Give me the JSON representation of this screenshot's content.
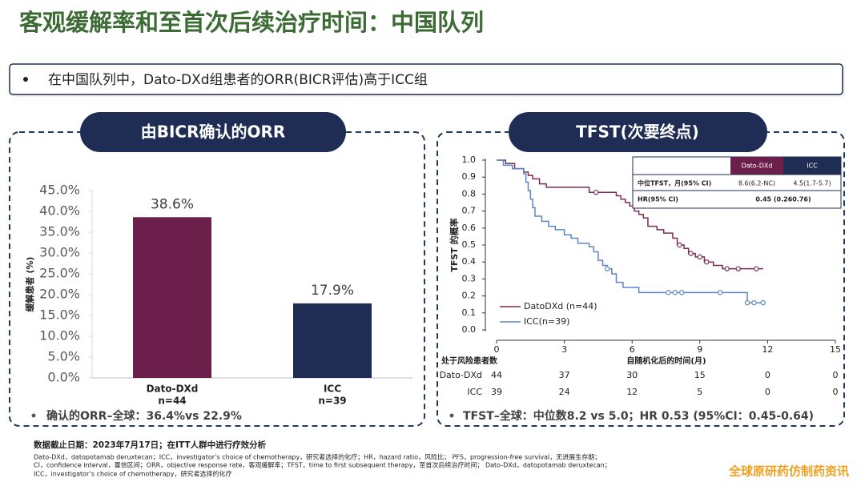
{
  "title": "客观缓解率和至首次后续治疗时间：中国队列",
  "callout": "在中国队列中，Dato-DXd组患者的ORR(BICR评估)高于ICC组",
  "chart_data": [
    {
      "type": "bar",
      "title": "由BICR确认的ORR",
      "y_label": "缓解患者 (%)",
      "categories": [
        "Dato-DXd",
        "ICC"
      ],
      "sample_sizes": [
        "n=44",
        "n=39"
      ],
      "values": [
        38.6,
        17.9
      ],
      "value_labels": [
        "38.6%",
        "17.9%"
      ],
      "colors": [
        "#6b1f4a",
        "#1f2d54"
      ],
      "ylim": [
        0,
        45
      ],
      "yticks": [
        {
          "value": 0,
          "label": "0.0%"
        },
        {
          "value": 5,
          "label": "5.0%"
        },
        {
          "value": 10,
          "label": "10.0%"
        },
        {
          "value": 15,
          "label": "15.0%"
        },
        {
          "value": 20,
          "label": "20.0%"
        },
        {
          "value": 25,
          "label": "25.0%"
        },
        {
          "value": 30,
          "label": "30.0%"
        },
        {
          "value": 35,
          "label": "35.0%"
        },
        {
          "value": 40,
          "label": "40.0%"
        },
        {
          "value": 45,
          "label": "45.0%"
        }
      ],
      "note": "确认的ORR–全球：36.4%vs 22.9%"
    },
    {
      "type": "step",
      "title": "TFST(次要终点)",
      "y_label": "TFST 的概率",
      "x_label": "自随机化后的时间(月)",
      "xlim": [
        0,
        15
      ],
      "xticks": [
        0,
        3,
        6,
        9,
        12,
        15
      ],
      "ylim": [
        0,
        1
      ],
      "yticks": [
        {
          "value": 0,
          "label": "0.0"
        },
        0.1,
        0.2,
        0.3,
        0.4,
        0.5,
        0.6,
        0.7,
        0.8,
        0.9,
        {
          "value": 1,
          "label": "1.0"
        }
      ],
      "series": [
        {
          "name": "DatoDXd (n=44)",
          "color": "#7b2d55",
          "x": [
            0,
            0.4,
            0.8,
            1.2,
            1.4,
            1.6,
            1.9,
            2.2,
            4.1,
            5.3,
            5.5,
            5.7,
            5.9,
            6.1,
            6.3,
            6.5,
            6.7,
            7.1,
            7.4,
            7.8,
            8.0,
            8.3,
            8.5,
            8.8,
            9.2,
            9.6,
            10.0,
            11.8
          ],
          "values": [
            1.0,
            0.98,
            0.95,
            0.93,
            0.91,
            0.89,
            0.86,
            0.84,
            0.81,
            0.79,
            0.77,
            0.75,
            0.73,
            0.7,
            0.68,
            0.66,
            0.61,
            0.59,
            0.57,
            0.54,
            0.5,
            0.48,
            0.45,
            0.43,
            0.4,
            0.38,
            0.36,
            0.36
          ],
          "censored": {
            "x": [
              4.4,
              8.1,
              8.6,
              9.0,
              9.3,
              10.2,
              10.7,
              11.5
            ],
            "values": [
              0.81,
              0.5,
              0.45,
              0.43,
              0.4,
              0.36,
              0.36,
              0.36
            ]
          }
        },
        {
          "name": "ICC(n=39)",
          "color": "#5b86c5",
          "x": [
            0,
            0.3,
            0.7,
            1.2,
            1.3,
            1.4,
            1.5,
            1.6,
            1.7,
            2.0,
            2.3,
            2.6,
            3.0,
            3.3,
            3.6,
            4.1,
            4.3,
            4.5,
            4.7,
            4.9,
            5.1,
            5.3,
            5.6,
            6.3,
            11.1,
            11.8
          ],
          "values": [
            1.0,
            0.97,
            0.95,
            0.92,
            0.87,
            0.82,
            0.77,
            0.72,
            0.67,
            0.64,
            0.61,
            0.59,
            0.56,
            0.54,
            0.51,
            0.49,
            0.46,
            0.41,
            0.38,
            0.36,
            0.33,
            0.28,
            0.25,
            0.22,
            0.16,
            0.16
          ],
          "censored": {
            "x": [
              4.9,
              7.6,
              7.9,
              8.2,
              9.9,
              11.1,
              11.4,
              11.8
            ],
            "values": [
              0.36,
              0.22,
              0.22,
              0.22,
              0.22,
              0.16,
              0.16,
              0.16
            ]
          }
        }
      ],
      "stats_table": {
        "columns": [
          "Dato-DXd",
          "ICC"
        ],
        "rows": [
          {
            "label": "中位TFST，月(95% CI)",
            "cells": [
              "8.6(6.2-NC)",
              "4.5(1.7-5.7)"
            ]
          },
          {
            "label": "HR(95% CI)",
            "cells": [
              "0.45 (0.260.76)"
            ]
          }
        ]
      },
      "risk_table": {
        "title": "处于风险患者数",
        "rows": [
          {
            "label": "Dato-DXd",
            "counts": [
              "44",
              "37",
              "30",
              "15",
              "0",
              "0"
            ]
          },
          {
            "label": "ICC",
            "counts": [
              "39",
              "24",
              "12",
              "5",
              "0",
              "0"
            ]
          }
        ]
      },
      "note": "TFST–全球：中位数8.2 vs 5.0；HR 0.53 (95%CI：0.45-0.64)"
    }
  ],
  "footnotes": {
    "cutoff": "数据截止日期：2023年7月17日；在ITT人群中进行疗效分析",
    "lines": [
      "Dato-DXd，datopotamab deruxtecan；ICC，investigator’s choice of chemotherapy，研究者选择的化疗；HR，hazard ratio，风险比； PFS，progression-free survival，无进展生存期；",
      "CI，confidence interval，置信区间；ORR，objective response rate，客观缓解率；TFST，time to first subsequent therapy，至首次后续治疗时间； Dato-DXd，datopotamab deruxtecan；",
      "ICC，investigator’s choice of chemotherapy，研究者选择的化疗"
    ]
  },
  "watermark": "全球原研药仿制药资讯"
}
